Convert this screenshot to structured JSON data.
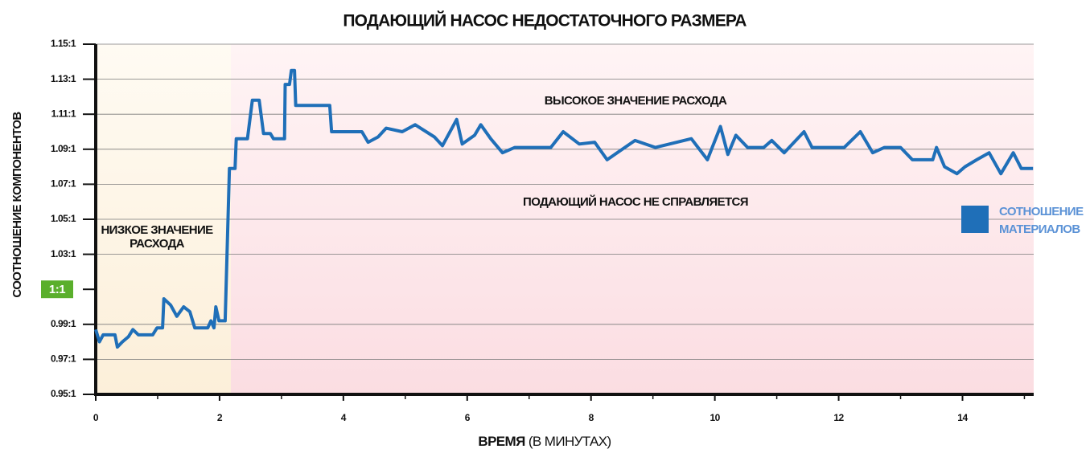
{
  "chart_data": {
    "type": "line",
    "title": "ПОДАЮЩИЙ НАСОС НЕДОСТАТОЧНОГО РАЗМЕРА",
    "y_label": "СООТНОШЕНИЕ КОМПОНЕНТОВ",
    "x_label": [
      "ВРЕМЯ",
      "(В МИНУТАХ)"
    ],
    "annotations": [
      {
        "lines": [
          "НИЗКОЕ ЗНАЧЕНИЕ",
          "РАСХОДА"
        ]
      },
      {
        "lines": [
          "ВЫСОКОЕ ЗНАЧЕНИЕ РАСХОДА"
        ]
      },
      {
        "lines": [
          "ПОДАЮЩИЙ НАСОС НЕ СПРАВЛЯЕТСЯ"
        ]
      }
    ],
    "xlim": [
      0,
      15.15
    ],
    "xticks": [
      0,
      2,
      4,
      6,
      8,
      10,
      12,
      14
    ],
    "xticks_minor": [
      1,
      3,
      5,
      7,
      9,
      11,
      13,
      15
    ],
    "ylim": [
      0.95,
      1.15
    ],
    "yticks": [
      {
        "value": 0.95,
        "label": "0.95:1"
      },
      {
        "value": 0.97,
        "label": "0.97:1"
      },
      {
        "value": 0.99,
        "label": "0.99:1"
      },
      {
        "value": 1,
        "label": "1:1"
      },
      {
        "value": 1.03,
        "label": "1.03:1"
      },
      {
        "value": 1.05,
        "label": "1.05:1"
      },
      {
        "value": 1.07,
        "label": "1.07:1"
      },
      {
        "value": 1.09,
        "label": "1.09:1"
      },
      {
        "value": 1.11,
        "label": "1.11:1"
      },
      {
        "value": 1.13,
        "label": "1.13:1"
      },
      {
        "value": 1.15,
        "label": "1.15:1"
      }
    ],
    "reference": {
      "value": 1,
      "color": "#5aaf2c"
    },
    "grid": true,
    "legend": "right",
    "series": [
      {
        "name": "СОТНОШЕНИЕ МАТЕРИАЛОВ",
        "color": "#1f6fb8",
        "x": [
          0,
          0.06,
          0.12,
          0.31,
          0.35,
          0.43,
          0.53,
          0.6,
          0.69,
          0.92,
          0.99,
          1.08,
          1.1,
          1.21,
          1.31,
          1.42,
          1.52,
          1.6,
          1.81,
          1.86,
          1.91,
          1.94,
          1.99,
          2.09,
          2.16,
          2.25,
          2.27,
          2.45,
          2.53,
          2.64,
          2.71,
          2.82,
          2.87,
          3.05,
          3.06,
          3.13,
          3.16,
          3.21,
          3.23,
          3.78,
          3.81,
          4.3,
          4.4,
          4.56,
          4.69,
          4.95,
          5.16,
          5.47,
          5.6,
          5.83,
          5.92,
          6.12,
          6.22,
          6.38,
          6.57,
          6.77,
          7.35,
          7.55,
          7.81,
          8.06,
          8.26,
          8.71,
          9.04,
          9.62,
          9.88,
          10.09,
          10.21,
          10.34,
          10.53,
          10.79,
          10.92,
          11.12,
          11.44,
          11.57,
          12.09,
          12.35,
          12.55,
          12.74,
          13,
          13.19,
          13.52,
          13.58,
          13.71,
          13.91,
          14.04,
          14.23,
          14.43,
          14.62,
          14.82,
          14.95,
          15.14
        ],
        "values": [
          0.987,
          0.98,
          0.984,
          0.984,
          0.977,
          0.98,
          0.983,
          0.987,
          0.984,
          0.984,
          0.988,
          0.988,
          0.9973,
          0.9955,
          0.9923,
          0.995,
          0.9936,
          0.988,
          0.988,
          0.991,
          0.988,
          0.995,
          0.991,
          0.991,
          1.079,
          1.079,
          1.096,
          1.096,
          1.118,
          1.118,
          1.099,
          1.099,
          1.096,
          1.096,
          1.127,
          1.127,
          1.135,
          1.135,
          1.115,
          1.115,
          1.1,
          1.1,
          1.094,
          1.097,
          1.102,
          1.1,
          1.104,
          1.097,
          1.092,
          1.107,
          1.093,
          1.098,
          1.104,
          1.096,
          1.088,
          1.091,
          1.091,
          1.1,
          1.093,
          1.094,
          1.084,
          1.095,
          1.091,
          1.096,
          1.084,
          1.103,
          1.087,
          1.098,
          1.091,
          1.091,
          1.095,
          1.088,
          1.1,
          1.091,
          1.091,
          1.1,
          1.088,
          1.091,
          1.091,
          1.084,
          1.084,
          1.091,
          1.08,
          1.076,
          1.08,
          1.084,
          1.088,
          1.076,
          1.088,
          1.079,
          1.079
        ]
      }
    ]
  }
}
